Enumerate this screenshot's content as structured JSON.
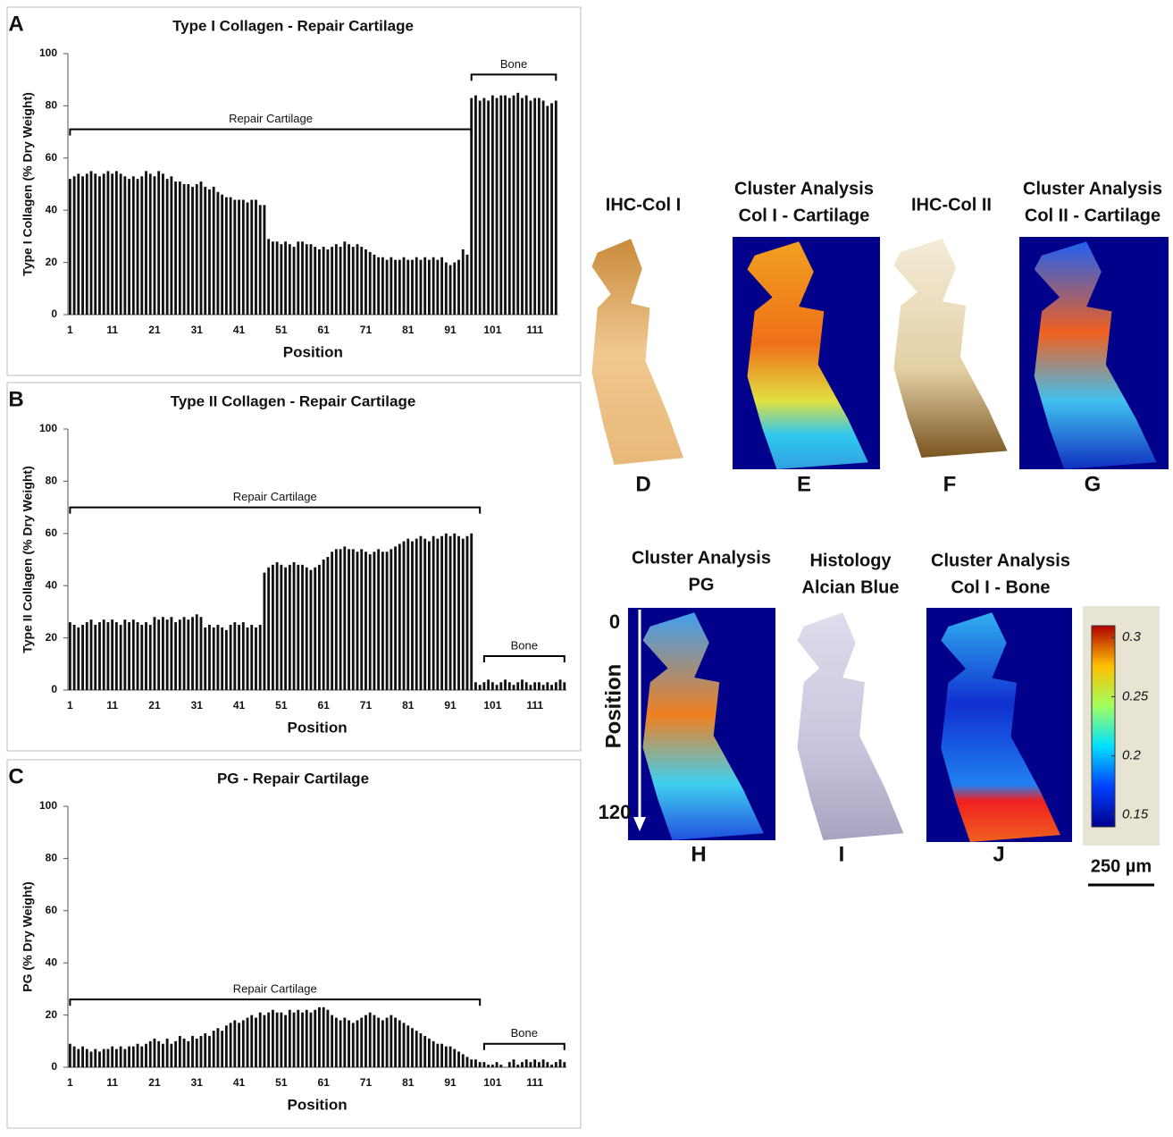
{
  "chart_data": [
    {
      "type": "bar",
      "panel": "A",
      "title": "Type I Collagen - Repair Cartilage",
      "xlabel": "Position",
      "ylabel": "Type I Collagen (% Dry Weight)",
      "color": "#111111",
      "categories": [
        "1",
        null,
        null,
        null,
        null,
        null,
        null,
        null,
        null,
        null,
        "11",
        null,
        null,
        null,
        null,
        null,
        null,
        null,
        null,
        null,
        "21",
        null,
        null,
        null,
        null,
        null,
        null,
        null,
        null,
        null,
        "31",
        null,
        null,
        null,
        null,
        null,
        null,
        null,
        null,
        null,
        "41",
        null,
        null,
        null,
        null,
        null,
        null,
        null,
        null,
        null,
        "51",
        null,
        null,
        null,
        null,
        null,
        null,
        null,
        null,
        null,
        "61",
        null,
        null,
        null,
        null,
        null,
        null,
        null,
        null,
        null,
        "71",
        null,
        null,
        null,
        null,
        null,
        null,
        null,
        null,
        null,
        "81",
        null,
        null,
        null,
        null,
        null,
        null,
        null,
        null,
        null,
        "91",
        null,
        null,
        null,
        null,
        null,
        null,
        null,
        null,
        null,
        "101",
        null,
        null,
        null,
        null,
        null,
        null,
        null,
        null,
        null,
        "111",
        null,
        null,
        null,
        null,
        null
      ],
      "values": [
        52,
        53,
        54,
        53,
        54,
        55,
        54,
        53,
        54,
        55,
        54,
        55,
        54,
        53,
        52,
        53,
        52,
        53,
        55,
        54,
        53,
        55,
        54,
        52,
        53,
        51,
        51,
        50,
        50,
        49,
        50,
        51,
        49,
        48,
        49,
        47,
        46,
        45,
        45,
        44,
        44,
        44,
        43,
        44,
        44,
        42,
        42,
        29,
        28,
        28,
        27,
        28,
        27,
        26,
        28,
        28,
        27,
        27,
        26,
        25,
        26,
        25,
        26,
        27,
        26,
        28,
        27,
        26,
        27,
        26,
        25,
        24,
        23,
        22,
        22,
        21,
        22,
        21,
        21,
        22,
        21,
        21,
        22,
        21,
        22,
        21,
        22,
        21,
        22,
        20,
        19,
        20,
        21,
        25,
        23,
        83,
        84,
        82,
        83,
        82,
        84,
        83,
        84,
        84,
        83,
        84,
        85,
        83,
        84,
        82,
        83,
        83,
        82,
        80,
        81,
        82
      ],
      "ylim": [
        0,
        100
      ],
      "yticks": [
        0,
        20,
        40,
        60,
        80,
        100
      ],
      "annotations": [
        {
          "text": "Repair Cartilage",
          "x": [
            1,
            96
          ],
          "y": 71
        },
        {
          "text": "Bone",
          "x": [
            96,
            116
          ],
          "y": 92
        }
      ]
    },
    {
      "type": "bar",
      "panel": "B",
      "title": "Type II Collagen - Repair Cartilage",
      "xlabel": "Position",
      "ylabel": "Type II Collagen (% Dry Weight)",
      "color": "#111111",
      "categories": [
        "1",
        null,
        null,
        null,
        null,
        null,
        null,
        null,
        null,
        null,
        "11",
        null,
        null,
        null,
        null,
        null,
        null,
        null,
        null,
        null,
        "21",
        null,
        null,
        null,
        null,
        null,
        null,
        null,
        null,
        null,
        "31",
        null,
        null,
        null,
        null,
        null,
        null,
        null,
        null,
        null,
        "41",
        null,
        null,
        null,
        null,
        null,
        null,
        null,
        null,
        null,
        "51",
        null,
        null,
        null,
        null,
        null,
        null,
        null,
        null,
        null,
        "61",
        null,
        null,
        null,
        null,
        null,
        null,
        null,
        null,
        null,
        "71",
        null,
        null,
        null,
        null,
        null,
        null,
        null,
        null,
        null,
        "81",
        null,
        null,
        null,
        null,
        null,
        null,
        null,
        null,
        null,
        "91",
        null,
        null,
        null,
        null,
        null,
        null,
        null,
        null,
        null,
        "101",
        null,
        null,
        null,
        null,
        null,
        null,
        null,
        null,
        null,
        "111",
        null,
        null,
        null,
        null,
        null,
        null,
        null
      ],
      "values": [
        26,
        25,
        24,
        25,
        26,
        27,
        25,
        26,
        27,
        26,
        27,
        26,
        25,
        27,
        26,
        27,
        26,
        25,
        26,
        25,
        28,
        27,
        28,
        27,
        28,
        26,
        27,
        28,
        27,
        28,
        29,
        28,
        24,
        25,
        24,
        25,
        24,
        23,
        25,
        26,
        25,
        26,
        24,
        25,
        24,
        25,
        45,
        47,
        48,
        49,
        48,
        47,
        48,
        49,
        48,
        48,
        47,
        46,
        47,
        48,
        50,
        51,
        53,
        54,
        54,
        55,
        54,
        54,
        53,
        54,
        53,
        52,
        53,
        54,
        53,
        53,
        54,
        55,
        56,
        57,
        58,
        57,
        58,
        59,
        58,
        57,
        59,
        58,
        59,
        60,
        59,
        60,
        59,
        58,
        59,
        60,
        3,
        2,
        3,
        4,
        3,
        2,
        3,
        4,
        3,
        2,
        3,
        4,
        3,
        2,
        3,
        3,
        2,
        3,
        2,
        3,
        4,
        3
      ],
      "ylim": [
        0,
        100
      ],
      "yticks": [
        0,
        20,
        40,
        60,
        80,
        100
      ],
      "annotations": [
        {
          "text": "Repair Cartilage",
          "x": [
            1,
            98
          ],
          "y": 70
        },
        {
          "text": "Bone",
          "x": [
            99,
            118
          ],
          "y": 13
        }
      ]
    },
    {
      "type": "bar",
      "panel": "C",
      "title": "PG - Repair Cartilage",
      "xlabel": "Position",
      "ylabel": "PG (% Dry Weight)",
      "color": "#111111",
      "categories": [
        "1",
        null,
        null,
        null,
        null,
        null,
        null,
        null,
        null,
        null,
        "11",
        null,
        null,
        null,
        null,
        null,
        null,
        null,
        null,
        null,
        "21",
        null,
        null,
        null,
        null,
        null,
        null,
        null,
        null,
        null,
        "31",
        null,
        null,
        null,
        null,
        null,
        null,
        null,
        null,
        null,
        "41",
        null,
        null,
        null,
        null,
        null,
        null,
        null,
        null,
        null,
        "51",
        null,
        null,
        null,
        null,
        null,
        null,
        null,
        null,
        null,
        "61",
        null,
        null,
        null,
        null,
        null,
        null,
        null,
        null,
        null,
        "71",
        null,
        null,
        null,
        null,
        null,
        null,
        null,
        null,
        null,
        "81",
        null,
        null,
        null,
        null,
        null,
        null,
        null,
        null,
        null,
        "91",
        null,
        null,
        null,
        null,
        null,
        null,
        null,
        null,
        null,
        "101",
        null,
        null,
        null,
        null,
        null,
        null,
        null,
        null,
        null,
        "111",
        null,
        null,
        null,
        null,
        null,
        null,
        null
      ],
      "values": [
        9,
        8,
        7,
        8,
        7,
        6,
        7,
        6,
        7,
        7,
        8,
        7,
        8,
        7,
        8,
        8,
        9,
        8,
        9,
        10,
        11,
        10,
        9,
        11,
        9,
        10,
        12,
        11,
        10,
        12,
        11,
        12,
        13,
        12,
        14,
        15,
        14,
        16,
        17,
        18,
        17,
        18,
        19,
        20,
        19,
        21,
        20,
        21,
        22,
        21,
        21,
        20,
        22,
        21,
        22,
        21,
        22,
        21,
        22,
        23,
        23,
        22,
        20,
        19,
        18,
        19,
        18,
        17,
        18,
        19,
        20,
        21,
        20,
        19,
        18,
        19,
        20,
        19,
        18,
        17,
        16,
        15,
        14,
        13,
        12,
        11,
        10,
        9,
        9,
        8,
        8,
        7,
        6,
        5,
        4,
        3,
        3,
        2,
        2,
        1,
        1,
        2,
        1,
        0,
        2,
        3,
        1,
        2,
        3,
        2,
        3,
        2,
        3,
        2,
        1,
        2,
        3,
        2
      ],
      "ylim": [
        0,
        100
      ],
      "yticks": [
        0,
        20,
        40,
        60,
        80,
        100
      ],
      "annotations": [
        {
          "text": "Repair Cartilage",
          "x": [
            1,
            98
          ],
          "y": 26
        },
        {
          "text": "Bone",
          "x": [
            99,
            118
          ],
          "y": 9
        }
      ]
    }
  ],
  "panels": [
    {
      "title": [
        "IHC-Col I"
      ],
      "label": "D"
    },
    {
      "title": [
        "Cluster Analysis",
        "Col I  - Cartilage"
      ],
      "label": "E"
    },
    {
      "title": [
        "IHC-Col II"
      ],
      "label": "F"
    },
    {
      "title": [
        "Cluster Analysis",
        "Col II - Cartilage"
      ],
      "label": "G"
    },
    {
      "title": [
        "Cluster Analysis",
        "PG"
      ],
      "label": "H"
    },
    {
      "title": [
        "Histology",
        "Alcian Blue"
      ],
      "label": "I"
    },
    {
      "title": [
        "Cluster Analysis",
        "Col I - Bone"
      ],
      "label": "J"
    }
  ],
  "position_arrow": {
    "label": "Position",
    "start": "0",
    "end": "120"
  },
  "colorbar": {
    "lim": [
      0.14,
      0.31
    ],
    "ticks": [
      0.3,
      0.25,
      0.2,
      0.15
    ]
  },
  "scale_bar": "250 µm"
}
